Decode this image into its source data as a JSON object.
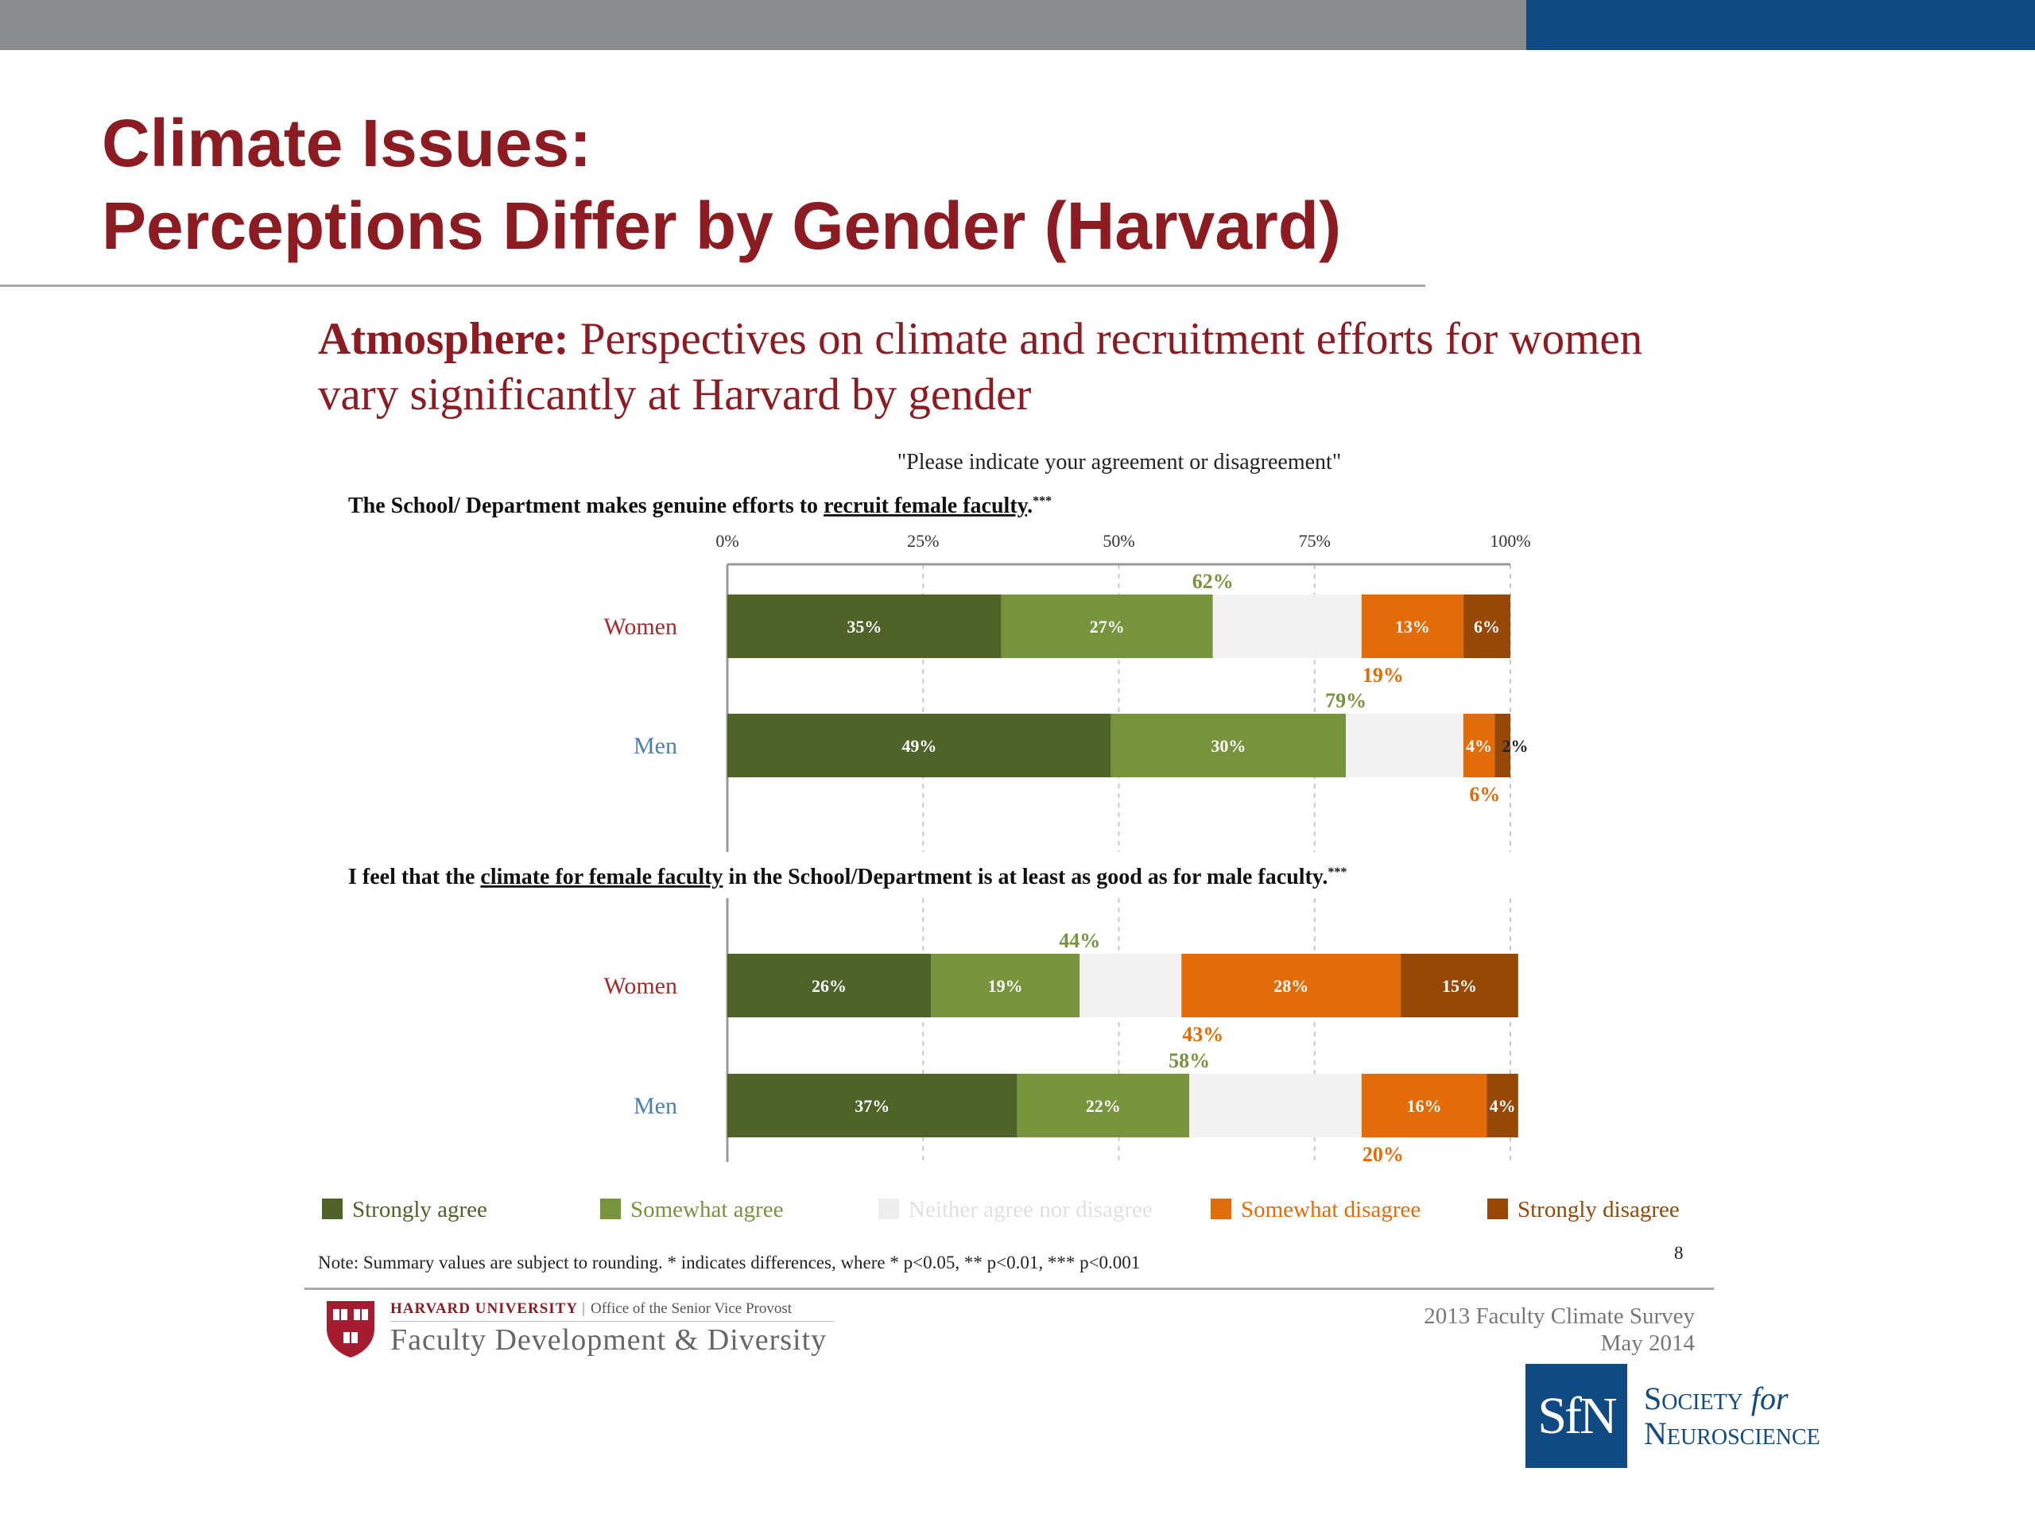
{
  "slide": {
    "title_line1": "Climate Issues:",
    "title_line2": "Perceptions Differ by Gender (Harvard)",
    "headline_bold": "Atmosphere:",
    "headline_rest": " Perspectives on climate and recruitment efforts for women vary significantly at Harvard by gender",
    "note": "Note: Summary values are subject to rounding.  * indicates differences, where * p<0.05, ** p<0.01, *** p<0.001",
    "page_number": "8"
  },
  "footer": {
    "university": "HARVARD UNIVERSITY",
    "separator": "|",
    "office": "Office of the Senior Vice Provost",
    "department": "Faculty Development & Diversity",
    "survey_name": "2013 Faculty Climate Survey",
    "survey_date": "May 2014",
    "sfn_logo_text": "SfN",
    "sfn_line1_a": "Society ",
    "sfn_line1_b": "for",
    "sfn_line2": "Neuroscience"
  },
  "colors": {
    "title": "#8c1c22",
    "women_label": "#a52a2a",
    "men_label": "#4a7fb5",
    "strongly_agree": "#4f6228",
    "somewhat_agree": "#77933c",
    "neither": "#f2f2f2",
    "somewhat_disagree": "#e36c09",
    "strongly_disagree": "#974706"
  },
  "chart_data": {
    "type": "bar",
    "stacked": true,
    "orientation": "horizontal",
    "prompt": "\"Please indicate your agreement or disagreement\"",
    "xlim": [
      0,
      100
    ],
    "x_ticks": [
      "0%",
      "25%",
      "50%",
      "75%",
      "100%"
    ],
    "legend": {
      "placement": "bottom",
      "entries": [
        "Strongly agree",
        "Somewhat agree",
        "Neither agree nor disagree",
        "Somewhat disagree",
        "Strongly disagree"
      ]
    },
    "panels": [
      {
        "question_pre": "The School/ Department makes genuine efforts to ",
        "question_underline": "recruit female faculty",
        "question_post": ".",
        "sig": "***",
        "categories": [
          "Women",
          "Men"
        ],
        "series": [
          {
            "name": "Strongly agree",
            "values": [
              35,
              49
            ],
            "labels": [
              "35%",
              "49%"
            ]
          },
          {
            "name": "Somewhat agree",
            "values": [
              27,
              30
            ],
            "labels": [
              "27%",
              "30%"
            ]
          },
          {
            "name": "Neither agree nor disagree",
            "values": [
              19,
              15
            ],
            "labels": [
              "",
              ""
            ]
          },
          {
            "name": "Somewhat disagree",
            "values": [
              13,
              4
            ],
            "labels": [
              "13%",
              "4%"
            ]
          },
          {
            "name": "Strongly disagree",
            "values": [
              6,
              2
            ],
            "labels": [
              "6%",
              "2%"
            ]
          }
        ],
        "agree_totals": [
          "62%",
          "79%"
        ],
        "disagree_totals": [
          "19%",
          "6%"
        ]
      },
      {
        "question_pre": "I feel that the ",
        "question_underline": "climate for female faculty",
        "question_post": " in the School/Department is at least as good as for male faculty.",
        "sig": "***",
        "categories": [
          "Women",
          "Men"
        ],
        "series": [
          {
            "name": "Strongly agree",
            "values": [
              26,
              37
            ],
            "labels": [
              "26%",
              "37%"
            ]
          },
          {
            "name": "Somewhat agree",
            "values": [
              19,
              22
            ],
            "labels": [
              "19%",
              "22%"
            ]
          },
          {
            "name": "Neither agree nor disagree",
            "values": [
              13,
              22
            ],
            "labels": [
              "",
              ""
            ]
          },
          {
            "name": "Somewhat disagree",
            "values": [
              28,
              16
            ],
            "labels": [
              "28%",
              "16%"
            ]
          },
          {
            "name": "Strongly disagree",
            "values": [
              15,
              4
            ],
            "labels": [
              "15%",
              "4%"
            ]
          }
        ],
        "agree_totals": [
          "44%",
          "58%"
        ],
        "disagree_totals": [
          "43%",
          "20%"
        ]
      }
    ]
  }
}
